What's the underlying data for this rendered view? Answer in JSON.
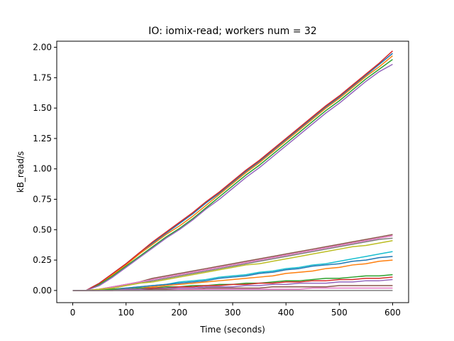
{
  "chart_data": {
    "type": "line",
    "title": "IO: iomix-read; workers num = 32",
    "xlabel": "Time (seconds)",
    "ylabel": "kB_read/s",
    "xlim": [
      -30,
      630
    ],
    "ylim": [
      -0.1,
      2.05
    ],
    "xticks": [
      0,
      100,
      200,
      300,
      400,
      500,
      600
    ],
    "yticks": [
      0.0,
      0.25,
      0.5,
      0.75,
      1.0,
      1.25,
      1.5,
      1.75,
      2.0
    ],
    "xtick_labels": [
      "0",
      "100",
      "200",
      "300",
      "400",
      "500",
      "600"
    ],
    "ytick_labels": [
      "0.00",
      "0.25",
      "0.50",
      "0.75",
      "1.00",
      "1.25",
      "1.50",
      "1.75",
      "2.00"
    ],
    "grid": false,
    "legend": "none",
    "colors": [
      "#1f77b4",
      "#ff7f0e",
      "#2ca02c",
      "#d62728",
      "#9467bd",
      "#8c564b",
      "#e377c2",
      "#7f7f7f",
      "#bcbd22",
      "#17becf"
    ],
    "x": [
      0,
      25,
      50,
      75,
      100,
      125,
      150,
      175,
      200,
      225,
      250,
      275,
      300,
      325,
      350,
      375,
      400,
      425,
      450,
      475,
      500,
      525,
      550,
      575,
      600
    ],
    "series": [
      {
        "values": [
          0.0,
          0.0,
          0.06,
          0.14,
          0.22,
          0.31,
          0.39,
          0.47,
          0.55,
          0.63,
          0.72,
          0.8,
          0.89,
          0.98,
          1.06,
          1.15,
          1.24,
          1.33,
          1.42,
          1.51,
          1.59,
          1.68,
          1.77,
          1.86,
          1.95
        ]
      },
      {
        "values": [
          0.0,
          0.0,
          0.05,
          0.13,
          0.21,
          0.3,
          0.38,
          0.46,
          0.53,
          0.61,
          0.7,
          0.79,
          0.88,
          0.97,
          1.05,
          1.14,
          1.23,
          1.32,
          1.41,
          1.5,
          1.58,
          1.67,
          1.76,
          1.84,
          1.93
        ]
      },
      {
        "values": [
          0.0,
          0.0,
          0.05,
          0.12,
          0.2,
          0.28,
          0.36,
          0.44,
          0.51,
          0.59,
          0.68,
          0.77,
          0.86,
          0.95,
          1.03,
          1.12,
          1.21,
          1.3,
          1.39,
          1.48,
          1.56,
          1.65,
          1.74,
          1.82,
          1.9
        ]
      },
      {
        "values": [
          0.0,
          0.0,
          0.06,
          0.14,
          0.22,
          0.31,
          0.4,
          0.48,
          0.56,
          0.64,
          0.73,
          0.81,
          0.9,
          0.99,
          1.07,
          1.16,
          1.25,
          1.34,
          1.43,
          1.52,
          1.6,
          1.69,
          1.78,
          1.87,
          1.97
        ]
      },
      {
        "values": [
          0.0,
          0.0,
          0.04,
          0.11,
          0.19,
          0.27,
          0.35,
          0.43,
          0.5,
          0.58,
          0.67,
          0.75,
          0.84,
          0.93,
          1.01,
          1.1,
          1.19,
          1.28,
          1.37,
          1.46,
          1.54,
          1.63,
          1.72,
          1.8,
          1.86
        ]
      },
      {
        "values": [
          0.0,
          0.0,
          0.01,
          0.03,
          0.05,
          0.07,
          0.1,
          0.12,
          0.14,
          0.16,
          0.18,
          0.2,
          0.22,
          0.24,
          0.26,
          0.28,
          0.3,
          0.32,
          0.34,
          0.36,
          0.38,
          0.4,
          0.42,
          0.44,
          0.46
        ]
      },
      {
        "values": [
          0.0,
          0.0,
          0.01,
          0.03,
          0.05,
          0.07,
          0.09,
          0.11,
          0.13,
          0.15,
          0.17,
          0.19,
          0.21,
          0.23,
          0.25,
          0.27,
          0.29,
          0.31,
          0.33,
          0.35,
          0.37,
          0.39,
          0.41,
          0.43,
          0.45
        ]
      },
      {
        "values": [
          0.0,
          0.0,
          0.01,
          0.02,
          0.04,
          0.06,
          0.08,
          0.1,
          0.12,
          0.14,
          0.16,
          0.18,
          0.2,
          0.22,
          0.24,
          0.26,
          0.28,
          0.3,
          0.32,
          0.34,
          0.36,
          0.38,
          0.4,
          0.42,
          0.43
        ]
      },
      {
        "values": [
          0.0,
          0.0,
          0.01,
          0.02,
          0.04,
          0.06,
          0.07,
          0.09,
          0.11,
          0.13,
          0.15,
          0.17,
          0.19,
          0.21,
          0.22,
          0.24,
          0.26,
          0.28,
          0.3,
          0.32,
          0.34,
          0.36,
          0.37,
          0.39,
          0.41
        ]
      },
      {
        "values": [
          0.0,
          0.0,
          0.0,
          0.01,
          0.02,
          0.03,
          0.04,
          0.05,
          0.07,
          0.08,
          0.09,
          0.11,
          0.12,
          0.13,
          0.15,
          0.16,
          0.18,
          0.19,
          0.21,
          0.22,
          0.24,
          0.26,
          0.28,
          0.3,
          0.32
        ]
      },
      {
        "values": [
          0.0,
          0.0,
          0.0,
          0.01,
          0.02,
          0.03,
          0.04,
          0.05,
          0.06,
          0.07,
          0.08,
          0.1,
          0.11,
          0.12,
          0.14,
          0.15,
          0.17,
          0.18,
          0.2,
          0.21,
          0.22,
          0.24,
          0.25,
          0.27,
          0.28
        ]
      },
      {
        "values": [
          0.0,
          0.0,
          0.0,
          0.01,
          0.01,
          0.02,
          0.03,
          0.04,
          0.05,
          0.06,
          0.07,
          0.08,
          0.09,
          0.1,
          0.11,
          0.12,
          0.14,
          0.15,
          0.16,
          0.18,
          0.19,
          0.21,
          0.22,
          0.24,
          0.25
        ]
      },
      {
        "values": [
          0.0,
          0.0,
          0.0,
          0.01,
          0.01,
          0.02,
          0.02,
          0.03,
          0.03,
          0.04,
          0.04,
          0.05,
          0.05,
          0.06,
          0.06,
          0.07,
          0.08,
          0.08,
          0.09,
          0.1,
          0.1,
          0.11,
          0.12,
          0.12,
          0.13
        ]
      },
      {
        "values": [
          0.0,
          0.0,
          0.0,
          0.0,
          0.01,
          0.01,
          0.02,
          0.02,
          0.03,
          0.03,
          0.04,
          0.04,
          0.05,
          0.05,
          0.06,
          0.06,
          0.07,
          0.07,
          0.08,
          0.08,
          0.09,
          0.09,
          0.1,
          0.1,
          0.11
        ]
      },
      {
        "values": [
          0.0,
          0.0,
          0.0,
          0.0,
          0.01,
          0.01,
          0.01,
          0.02,
          0.02,
          0.02,
          0.03,
          0.03,
          0.03,
          0.04,
          0.04,
          0.05,
          0.05,
          0.06,
          0.06,
          0.06,
          0.07,
          0.07,
          0.08,
          0.08,
          0.09
        ]
      },
      {
        "values": [
          0.0,
          0.0,
          0.0,
          0.0,
          0.0,
          0.0,
          0.01,
          0.01,
          0.01,
          0.01,
          0.02,
          0.02,
          0.02,
          0.02,
          0.02,
          0.03,
          0.03,
          0.03,
          0.03,
          0.03,
          0.04,
          0.04,
          0.04,
          0.04,
          0.04
        ]
      },
      {
        "values": [
          0.0,
          0.0,
          0.0,
          0.0,
          0.0,
          0.0,
          0.0,
          0.0,
          0.01,
          0.01,
          0.01,
          0.01,
          0.01,
          0.01,
          0.01,
          0.01,
          0.01,
          0.01,
          0.02,
          0.02,
          0.02,
          0.02,
          0.02,
          0.02,
          0.02
        ]
      },
      {
        "values": [
          0.0,
          0.0,
          0.0,
          0.0,
          0.0,
          0.0,
          0.0,
          0.0,
          0.0,
          0.0,
          0.0,
          0.0,
          0.0,
          0.0,
          0.0,
          0.0,
          0.0,
          0.0,
          0.0,
          0.0,
          0.0,
          0.0,
          0.0,
          0.0,
          0.0
        ]
      }
    ]
  }
}
